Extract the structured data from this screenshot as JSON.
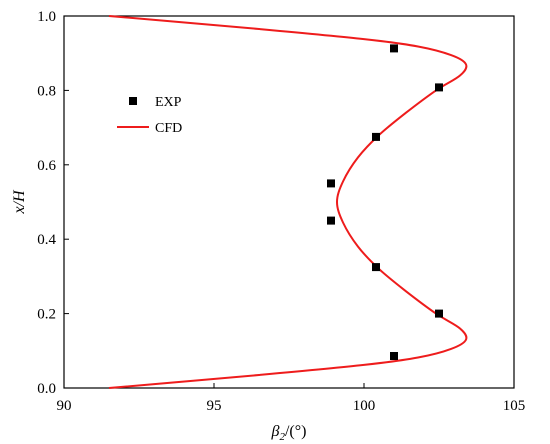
{
  "chart_data": {
    "type": "scatter",
    "xlim": [
      90,
      105
    ],
    "ylim": [
      0.0,
      1.0
    ],
    "x_ticks": [
      90,
      95,
      100,
      105
    ],
    "y_ticks": [
      0.0,
      0.2,
      0.4,
      0.6,
      0.8,
      1.0
    ],
    "x_tick_labels": [
      "90",
      "95",
      "100",
      "105"
    ],
    "y_tick_labels": [
      "0.0",
      "0.2",
      "0.4",
      "0.6",
      "0.8",
      "1.0"
    ],
    "xlabel_main": "β",
    "xlabel_sub": "2",
    "xlabel_unit": "/(°)",
    "ylabel": "x/H",
    "grid": false,
    "legend_position": "upper-left",
    "series": [
      {
        "name": "EXP",
        "kind": "scatter",
        "marker": "square",
        "color": "#000000",
        "points": [
          {
            "x": 101.0,
            "y": 0.913
          },
          {
            "x": 102.5,
            "y": 0.808
          },
          {
            "x": 100.4,
            "y": 0.675
          },
          {
            "x": 98.9,
            "y": 0.55
          },
          {
            "x": 98.9,
            "y": 0.45
          },
          {
            "x": 100.4,
            "y": 0.325
          },
          {
            "x": 102.5,
            "y": 0.2
          },
          {
            "x": 101.0,
            "y": 0.086
          }
        ]
      },
      {
        "name": "CFD",
        "kind": "line",
        "color": "#ee1c1c",
        "points": [
          {
            "x": 91.5,
            "y": 1.0
          },
          {
            "x": 96.5,
            "y": 0.965
          },
          {
            "x": 100.0,
            "y": 0.938
          },
          {
            "x": 101.8,
            "y": 0.918
          },
          {
            "x": 102.9,
            "y": 0.895
          },
          {
            "x": 103.4,
            "y": 0.87
          },
          {
            "x": 103.2,
            "y": 0.84
          },
          {
            "x": 102.4,
            "y": 0.8
          },
          {
            "x": 101.4,
            "y": 0.74
          },
          {
            "x": 100.5,
            "y": 0.68
          },
          {
            "x": 99.8,
            "y": 0.62
          },
          {
            "x": 99.3,
            "y": 0.555
          },
          {
            "x": 99.1,
            "y": 0.5
          },
          {
            "x": 99.3,
            "y": 0.445
          },
          {
            "x": 99.8,
            "y": 0.38
          },
          {
            "x": 100.5,
            "y": 0.32
          },
          {
            "x": 101.4,
            "y": 0.26
          },
          {
            "x": 102.4,
            "y": 0.2
          },
          {
            "x": 103.2,
            "y": 0.16
          },
          {
            "x": 103.4,
            "y": 0.13
          },
          {
            "x": 102.9,
            "y": 0.105
          },
          {
            "x": 101.8,
            "y": 0.082
          },
          {
            "x": 100.0,
            "y": 0.062
          },
          {
            "x": 96.5,
            "y": 0.035
          },
          {
            "x": 91.5,
            "y": 0.0
          }
        ]
      }
    ]
  }
}
